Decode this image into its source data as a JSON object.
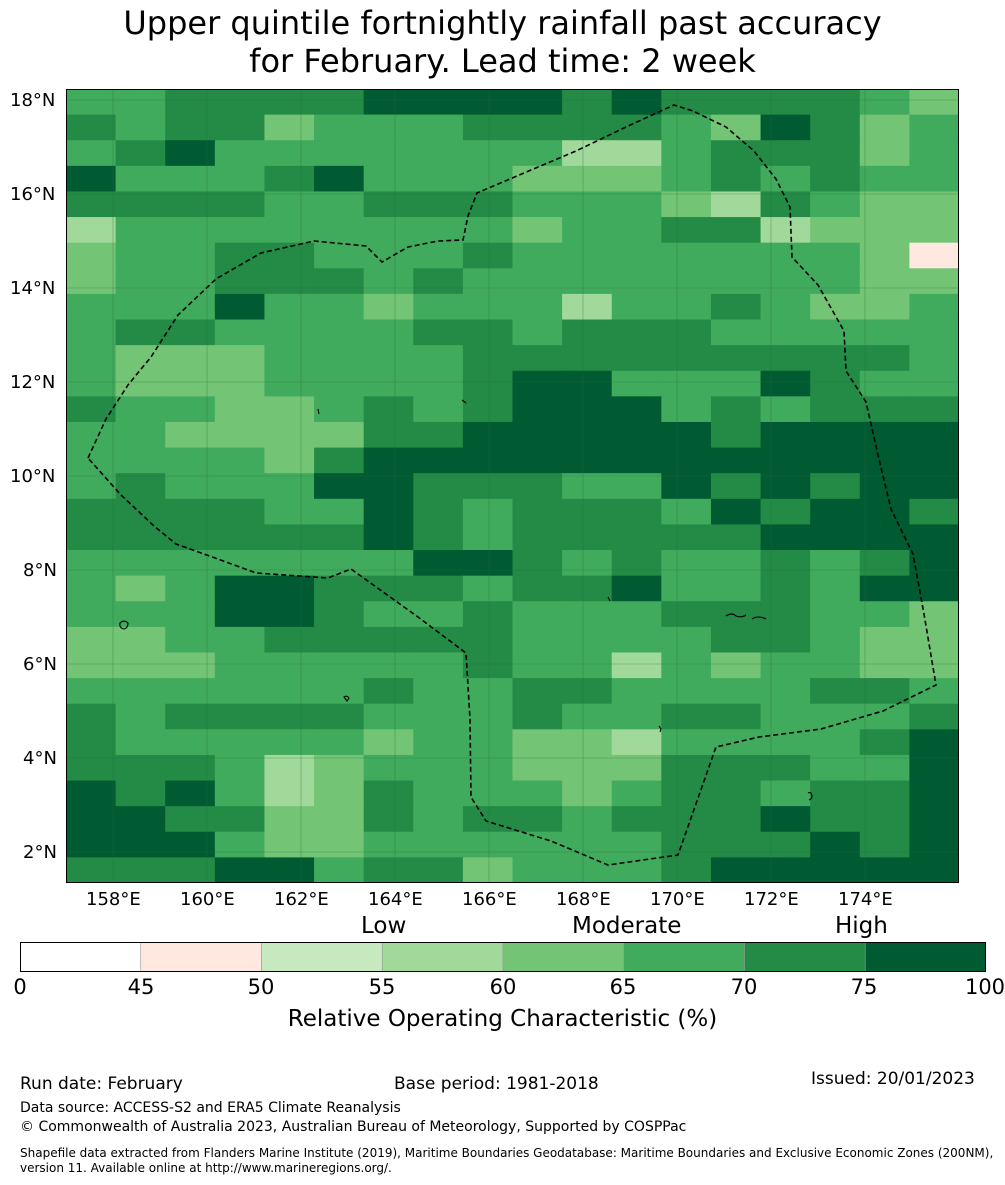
{
  "title": {
    "line1": "Upper quintile fortnightly rainfall past accuracy",
    "line2": "for February. Lead time: 2 week"
  },
  "map": {
    "y_ticks": [
      "18°N",
      "16°N",
      "14°N",
      "12°N",
      "10°N",
      "8°N",
      "6°N",
      "4°N",
      "2°N"
    ],
    "x_ticks": [
      "158°E",
      "160°E",
      "162°E",
      "164°E",
      "166°E",
      "168°E",
      "170°E",
      "172°E",
      "174°E"
    ],
    "palette_by_bin": [
      "#ffffff",
      "#fee8e0",
      "#c7e9c0",
      "#a1d99b",
      "#74c476",
      "#41ab5d",
      "#238b45",
      "#005a32"
    ],
    "grid_rows": [
      "556666777767666654",
      "656645556666547645",
      "567555555533566645",
      "755567555444565655",
      "666655666555436544",
      "355555555455663444",
      "455665556555555541",
      "455666565555555544",
      "555755455535565445",
      "566555566566655555",
      "544455556666666665",
      "544455556775557655",
      "655445656777565666",
      "554444667777767777",
      "555546777777777777",
      "565557766655767677",
      "666655765666576776",
      "666666765666667777",
      "555555577656556567",
      "545776665667556577",
      "555776556555666554",
      "445566666555566544",
      "444555556553545544",
      "555555655665555665",
      "656666555655665556",
      "655555455443555567",
      "666534555444666557",
      "767534655545665667",
      "776644656656667667",
      "777544555555666767",
      "666775664555677777"
    ]
  },
  "legend": {
    "categories": [
      "Low",
      "Moderate",
      "High"
    ],
    "ticks": [
      "0",
      "45",
      "50",
      "55",
      "60",
      "65",
      "70",
      "75",
      "100"
    ],
    "colors": [
      "#ffffff",
      "#fee8e0",
      "#c7e9c0",
      "#a1d99b",
      "#74c476",
      "#41ab5d",
      "#238b45",
      "#005a32"
    ],
    "title": "Relative Operating Characteristic (%)"
  },
  "footer": {
    "run_date": "Run date: February",
    "base_period": "Base period: 1981-2018",
    "issued": "Issued: 20/01/2023",
    "data_source": "Data source: ACCESS-S2 and ERA5 Climate Reanalysis",
    "copyright": "© Commonwealth of Australia 2023, Australian Bureau of Meteorology, Supported by COSPPac",
    "shapefile": "Shapefile data extracted from Flanders Marine Institute (2019), Maritime Boundaries Geodatabase: Maritime Boundaries and Exclusive Economic Zones (200NM), version 11. Available online at http://www.marineregions.org/."
  }
}
